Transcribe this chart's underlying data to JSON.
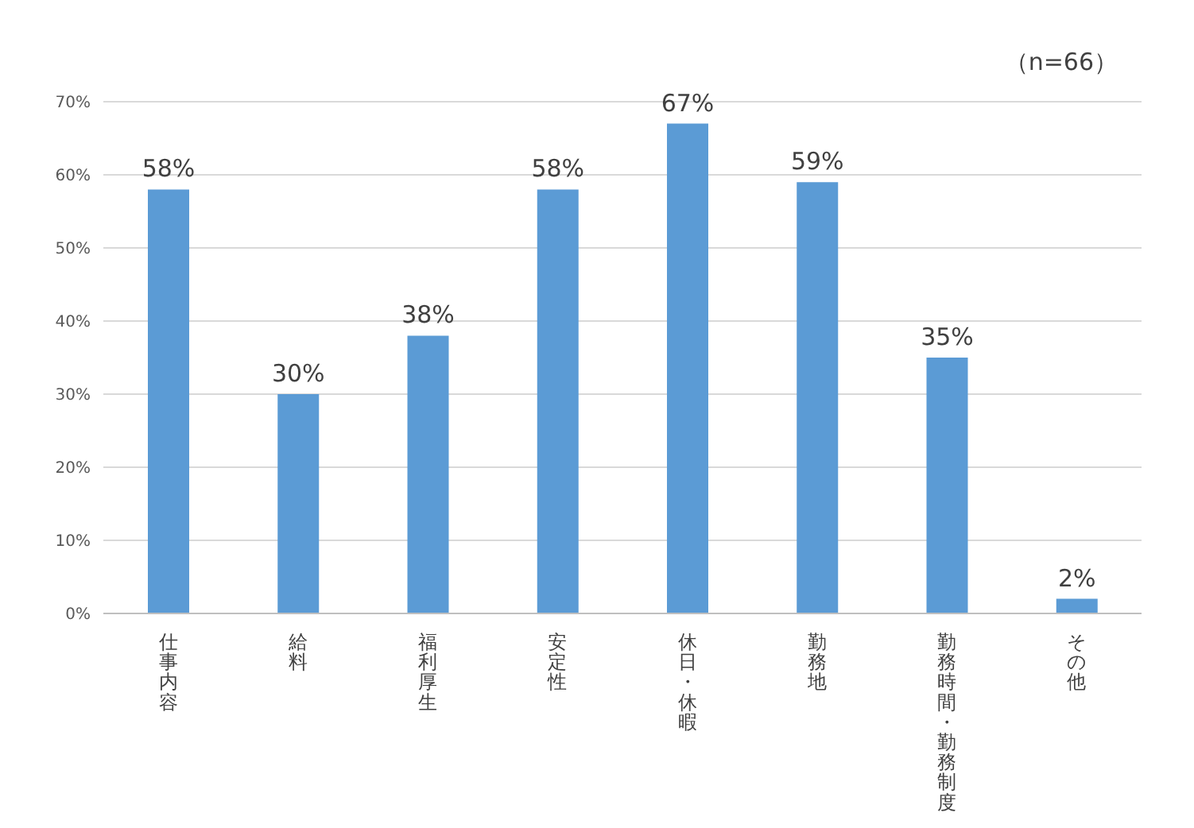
{
  "chart_data": {
    "type": "bar",
    "annotations": [
      "（n=66）"
    ],
    "categories": [
      "仕事内容",
      "給料",
      "福利厚生",
      "安定性",
      "休日・休暇",
      "勤務地",
      "勤務時間・勤務制度",
      "その他"
    ],
    "values": [
      58,
      30,
      38,
      58,
      67,
      59,
      35,
      2
    ],
    "color": "#5b9bd5",
    "ylim": [
      0,
      70
    ],
    "yticks": [
      {
        "value": 0,
        "label": "0%"
      },
      {
        "value": 10,
        "label": "10%"
      },
      {
        "value": 20,
        "label": "20%"
      },
      {
        "value": 30,
        "label": "30%"
      },
      {
        "value": 40,
        "label": "40%"
      },
      {
        "value": 50,
        "label": "50%"
      },
      {
        "value": 60,
        "label": "60%"
      },
      {
        "value": 70,
        "label": "70%"
      }
    ],
    "value_labels": [
      "58%",
      "30%",
      "38%",
      "58%",
      "67%",
      "59%",
      "35%",
      "2%"
    ],
    "grid": "y",
    "legend": false
  }
}
